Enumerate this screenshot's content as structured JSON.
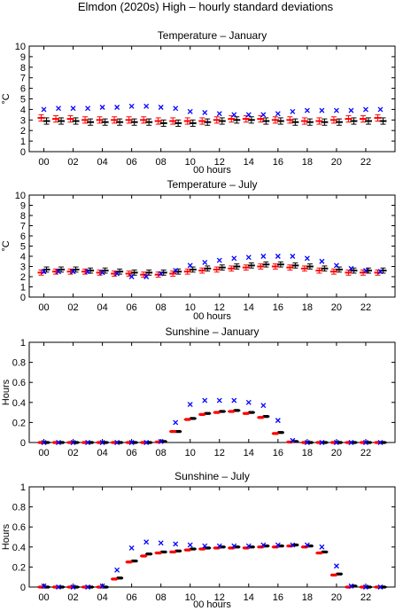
{
  "suptitle": "Elmdon (2020s) High – hourly standard deviations",
  "colors": {
    "obs": "#0000ff",
    "model_red": "#ff0000",
    "model_black": "#000000"
  },
  "chart_data": [
    {
      "type": "scatter",
      "title": "Temperature – January",
      "xlabel": "00 hours",
      "ylabel": "°C",
      "ylim": [
        0,
        10
      ],
      "yticks": [
        0,
        1,
        2,
        3,
        4,
        5,
        6,
        7,
        8,
        9,
        10
      ],
      "xlim": [
        -1,
        24
      ],
      "xticks": [
        "00",
        "02",
        "04",
        "06",
        "08",
        "10",
        "12",
        "14",
        "16",
        "18",
        "20",
        "22"
      ],
      "x": [
        0,
        1,
        2,
        3,
        4,
        5,
        6,
        7,
        8,
        9,
        10,
        11,
        12,
        13,
        14,
        15,
        16,
        17,
        18,
        19,
        20,
        21,
        22,
        23
      ],
      "series": [
        {
          "marker": "x",
          "values": [
            4.0,
            4.1,
            4.1,
            4.1,
            4.2,
            4.2,
            4.3,
            4.3,
            4.2,
            4.1,
            3.8,
            3.7,
            3.6,
            3.5,
            3.5,
            3.5,
            3.6,
            3.8,
            3.9,
            3.9,
            3.9,
            3.9,
            4.0,
            4.0
          ]
        },
        {
          "marker": "errorbar",
          "values": [
            3.2,
            3.1,
            3.1,
            3.0,
            3.0,
            3.0,
            3.0,
            3.0,
            2.9,
            2.9,
            2.9,
            2.9,
            3.0,
            3.1,
            3.1,
            3.1,
            3.0,
            3.0,
            2.9,
            2.9,
            3.0,
            3.1,
            3.1,
            3.2
          ],
          "err": 0.3
        },
        {
          "marker": "errorbar",
          "values": [
            2.9,
            2.9,
            2.9,
            2.8,
            2.8,
            2.8,
            2.8,
            2.8,
            2.7,
            2.7,
            2.7,
            2.8,
            2.9,
            3.0,
            3.0,
            2.9,
            2.9,
            2.8,
            2.8,
            2.8,
            2.8,
            2.9,
            2.9,
            2.9
          ],
          "err": 0.3
        }
      ]
    },
    {
      "type": "scatter",
      "title": "Temperature – July",
      "xlabel": "00 hours",
      "ylabel": "°C",
      "ylim": [
        0,
        10
      ],
      "yticks": [
        0,
        1,
        2,
        3,
        4,
        5,
        6,
        7,
        8,
        9,
        10
      ],
      "xlim": [
        -1,
        24
      ],
      "xticks": [
        "00",
        "02",
        "04",
        "06",
        "08",
        "10",
        "12",
        "14",
        "16",
        "18",
        "20",
        "22"
      ],
      "x": [
        0,
        1,
        2,
        3,
        4,
        5,
        6,
        7,
        8,
        9,
        10,
        11,
        12,
        13,
        14,
        15,
        16,
        17,
        18,
        19,
        20,
        21,
        22,
        23
      ],
      "series": [
        {
          "marker": "x",
          "values": [
            2.5,
            2.5,
            2.5,
            2.5,
            2.4,
            2.3,
            2.0,
            2.0,
            2.3,
            2.6,
            3.1,
            3.4,
            3.6,
            3.8,
            3.9,
            4.0,
            4.0,
            4.0,
            3.8,
            3.5,
            3.1,
            2.8,
            2.6,
            2.5
          ]
        },
        {
          "marker": "errorbar",
          "values": [
            2.4,
            2.5,
            2.5,
            2.5,
            2.4,
            2.3,
            2.3,
            2.2,
            2.2,
            2.3,
            2.5,
            2.6,
            2.7,
            2.8,
            2.9,
            3.0,
            3.0,
            2.9,
            2.8,
            2.6,
            2.5,
            2.4,
            2.4,
            2.4
          ],
          "err": 0.25
        },
        {
          "marker": "errorbar",
          "values": [
            2.7,
            2.7,
            2.7,
            2.6,
            2.6,
            2.5,
            2.4,
            2.4,
            2.4,
            2.5,
            2.7,
            2.8,
            2.9,
            3.0,
            3.1,
            3.2,
            3.2,
            3.1,
            3.0,
            2.8,
            2.7,
            2.6,
            2.6,
            2.6
          ],
          "err": 0.25
        }
      ]
    },
    {
      "type": "scatter",
      "title": "Sunshine – January",
      "xlabel": "",
      "ylabel": "Hours",
      "ylim": [
        0,
        1
      ],
      "yticks": [
        0,
        0.2,
        0.4,
        0.6,
        0.8,
        1
      ],
      "xlim": [
        -1,
        24
      ],
      "xticks": [
        "00",
        "02",
        "04",
        "06",
        "08",
        "10",
        "12",
        "14",
        "16",
        "18",
        "20",
        "22"
      ],
      "x": [
        0,
        1,
        2,
        3,
        4,
        5,
        6,
        7,
        8,
        9,
        10,
        11,
        12,
        13,
        14,
        15,
        16,
        17,
        18,
        19,
        20,
        21,
        22,
        23
      ],
      "series": [
        {
          "marker": "x",
          "values": [
            0,
            0,
            0,
            0,
            0,
            0,
            0,
            0,
            0.01,
            0.2,
            0.38,
            0.42,
            0.42,
            0.42,
            0.4,
            0.37,
            0.22,
            0.02,
            0,
            0,
            0,
            0,
            0,
            0
          ]
        },
        {
          "marker": "errorbar",
          "values": [
            0,
            0,
            0,
            0,
            0,
            0,
            0,
            0,
            0.005,
            0.11,
            0.23,
            0.28,
            0.3,
            0.31,
            0.29,
            0.25,
            0.09,
            0.005,
            0,
            0,
            0,
            0,
            0,
            0
          ],
          "err": 0.01
        },
        {
          "marker": "errorbar",
          "values": [
            0,
            0,
            0,
            0,
            0,
            0,
            0,
            0,
            0.01,
            0.11,
            0.24,
            0.29,
            0.31,
            0.32,
            0.3,
            0.26,
            0.1,
            0.01,
            0,
            0,
            0,
            0,
            0,
            0
          ],
          "err": 0.01
        }
      ]
    },
    {
      "type": "scatter",
      "title": "Sunshine – July",
      "xlabel": "00 hours",
      "ylabel": "Hours",
      "ylim": [
        0,
        1
      ],
      "yticks": [
        0,
        0.2,
        0.4,
        0.6,
        0.8,
        1
      ],
      "xlim": [
        -1,
        24
      ],
      "xticks": [
        "00",
        "02",
        "04",
        "06",
        "08",
        "10",
        "12",
        "14",
        "16",
        "18",
        "20",
        "22"
      ],
      "x": [
        0,
        1,
        2,
        3,
        4,
        5,
        6,
        7,
        8,
        9,
        10,
        11,
        12,
        13,
        14,
        15,
        16,
        17,
        18,
        19,
        20,
        21,
        22,
        23
      ],
      "series": [
        {
          "marker": "x",
          "values": [
            0.01,
            0,
            0,
            0,
            0.01,
            0.17,
            0.39,
            0.45,
            0.44,
            0.43,
            0.42,
            0.41,
            0.41,
            0.41,
            0.41,
            0.42,
            0.42,
            0.42,
            0.42,
            0.4,
            0.21,
            0.01,
            0,
            0
          ]
        },
        {
          "marker": "errorbar",
          "values": [
            0,
            0,
            0,
            0,
            0,
            0.08,
            0.25,
            0.31,
            0.34,
            0.35,
            0.37,
            0.38,
            0.39,
            0.39,
            0.39,
            0.4,
            0.4,
            0.41,
            0.4,
            0.34,
            0.12,
            0,
            0,
            0
          ],
          "err": 0.01
        },
        {
          "marker": "errorbar",
          "values": [
            0,
            0,
            0,
            0,
            0,
            0.09,
            0.26,
            0.33,
            0.35,
            0.36,
            0.38,
            0.39,
            0.4,
            0.4,
            0.4,
            0.41,
            0.41,
            0.42,
            0.41,
            0.35,
            0.13,
            0.01,
            0,
            0
          ],
          "err": 0.01
        }
      ]
    }
  ]
}
